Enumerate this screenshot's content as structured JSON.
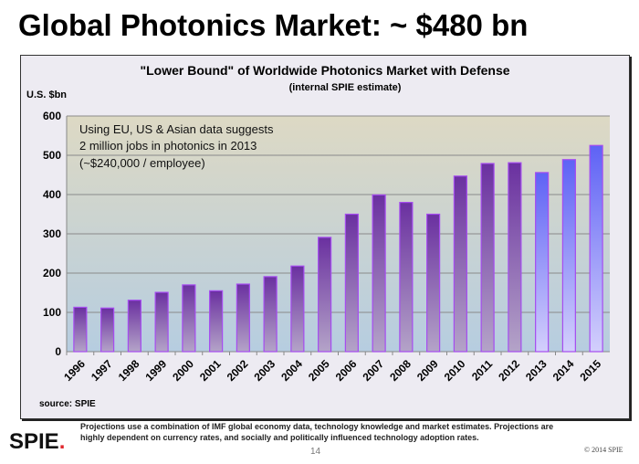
{
  "slide": {
    "title": "Global Photonics Market: ~ $480 bn",
    "footnote": "Projections use a combination of IMF global economy data, technology knowledge and market estimates. Projections are highly dependent on currency rates, and socially and politically influenced technology adoption rates.",
    "logo": "SPIE",
    "page_number": "14",
    "copyright": "© 2014 SPIE"
  },
  "chart_data": {
    "type": "bar",
    "title": "\"Lower Bound\" of Worldwide Photonics Market with Defense",
    "subtitle": "(internal SPIE estimate)",
    "ylabel": "U.S. $bn",
    "xlabel": "",
    "ylim": [
      0,
      600
    ],
    "yticks": [
      0,
      100,
      200,
      300,
      400,
      500,
      600
    ],
    "grid": true,
    "annotation": [
      "Using EU, US & Asian data suggests",
      "2 million jobs in photonics in 2013",
      "(~$240,000 / employee)"
    ],
    "source": "source: SPIE",
    "categories": [
      "1996",
      "1997",
      "1998",
      "1999",
      "2000",
      "2001",
      "2002",
      "2003",
      "2004",
      "2005",
      "2006",
      "2007",
      "2008",
      "2009",
      "2010",
      "2011",
      "2012",
      "2013",
      "2014",
      "2015"
    ],
    "values": [
      113,
      111,
      131,
      151,
      170,
      155,
      172,
      191,
      218,
      291,
      350,
      399,
      380,
      350,
      447,
      479,
      481,
      456,
      489,
      525
    ],
    "projected_from": "2013",
    "colors": {
      "historical_top": "#6a30a0",
      "historical_bottom": "#b4a3c8",
      "projected_top": "#5e62f5",
      "projected_bottom": "#d3cffc",
      "bar_border": "#a64cf0",
      "plot_top": "#ddd9c4",
      "plot_bottom": "#b6cde0"
    }
  }
}
